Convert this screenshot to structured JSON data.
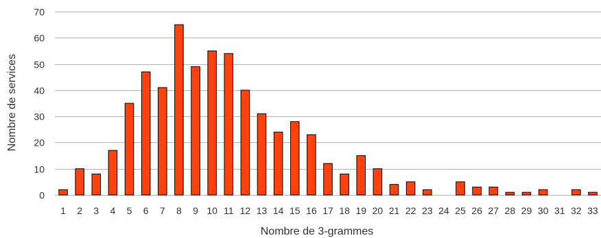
{
  "chart_data": {
    "type": "bar",
    "title": "",
    "xlabel": "Nombre de 3-grammes",
    "ylabel": "Nombre de services",
    "categories": [
      "1",
      "2",
      "3",
      "4",
      "5",
      "6",
      "7",
      "8",
      "9",
      "10",
      "11",
      "12",
      "13",
      "14",
      "15",
      "16",
      "17",
      "18",
      "19",
      "20",
      "21",
      "22",
      "23",
      "24",
      "25",
      "26",
      "27",
      "28",
      "29",
      "30",
      "31",
      "32",
      "33"
    ],
    "values": [
      2,
      10,
      8,
      17,
      35,
      47,
      41,
      65,
      49,
      55,
      54,
      40,
      31,
      24,
      28,
      23,
      12,
      8,
      15,
      10,
      4,
      5,
      2,
      0,
      5,
      3,
      3,
      1,
      1,
      2,
      0,
      2,
      1
    ],
    "ylim": [
      0,
      70
    ],
    "yticks": [
      0,
      10,
      20,
      30,
      40,
      50,
      60,
      70
    ],
    "grid": "horizontal",
    "legend": "none",
    "colors": {
      "bar_fill": "#ff420e",
      "bar_stroke": "#000000",
      "grid": "#b3b3b3"
    }
  }
}
